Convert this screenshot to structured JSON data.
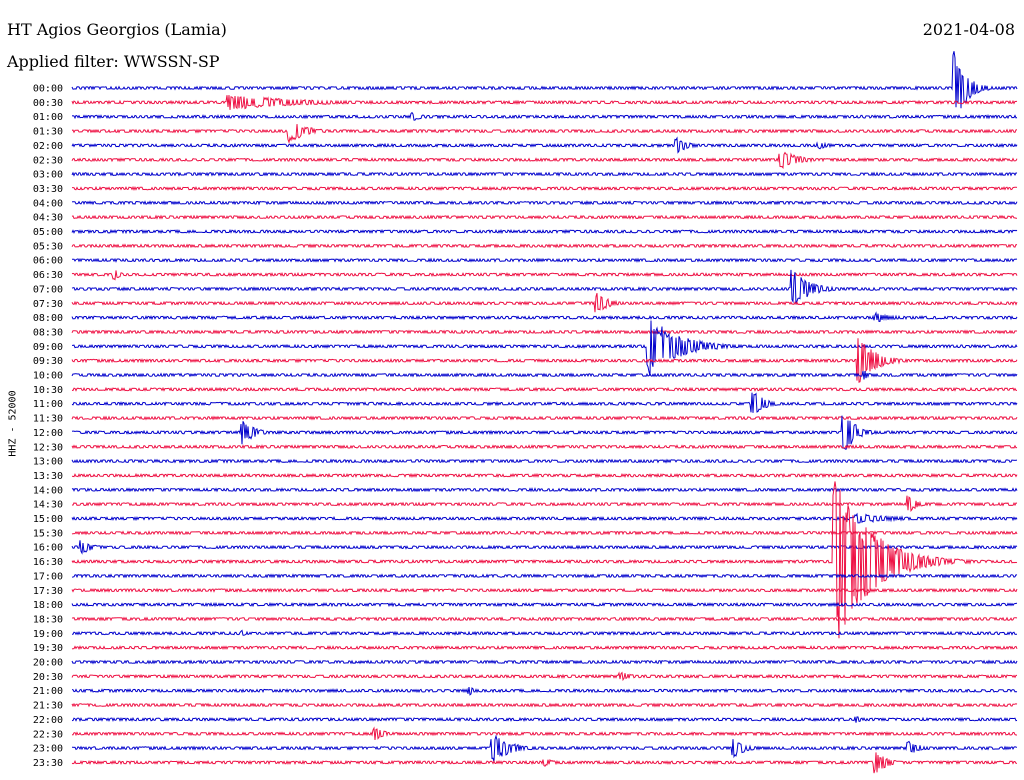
{
  "header": {
    "station": "HT Agios Georgios (Lamia)",
    "date": "2021-04-08",
    "filter": "Applied filter: WWSSN-SP"
  },
  "chart_data": {
    "type": "line",
    "ylabel": "HHZ - 52000",
    "colors": {
      "even": "#0000cc",
      "odd": "#ee1144"
    },
    "tick_labels": [
      "00:00",
      "00:30",
      "01:00",
      "01:30",
      "02:00",
      "02:30",
      "03:00",
      "03:30",
      "04:00",
      "04:30",
      "05:00",
      "05:30",
      "06:00",
      "06:30",
      "07:00",
      "07:30",
      "08:00",
      "08:30",
      "09:00",
      "09:30",
      "10:00",
      "10:30",
      "11:00",
      "11:30",
      "12:00",
      "12:30",
      "13:00",
      "13:30",
      "14:00",
      "14:30",
      "15:00",
      "15:30",
      "16:00",
      "16:30",
      "17:00",
      "17:30",
      "18:00",
      "18:30",
      "19:00",
      "19:30",
      "20:00",
      "20:30",
      "21:00",
      "21:30",
      "22:00",
      "22:30",
      "23:00",
      "23:30"
    ],
    "events": [
      {
        "row": 0,
        "at": 0.934,
        "amp": 40,
        "len": 0.02
      },
      {
        "row": 1,
        "at": 0.165,
        "amp": 8,
        "len": 0.12
      },
      {
        "row": 2,
        "at": 0.36,
        "amp": 5,
        "len": 0.02
      },
      {
        "row": 3,
        "at": 0.23,
        "amp": 12,
        "len": 0.03
      },
      {
        "row": 4,
        "at": 0.64,
        "amp": 8,
        "len": 0.02
      },
      {
        "row": 4,
        "at": 0.79,
        "amp": 4,
        "len": 0.02
      },
      {
        "row": 5,
        "at": 0.75,
        "amp": 10,
        "len": 0.03
      },
      {
        "row": 13,
        "at": 0.045,
        "amp": 6,
        "len": 0.01
      },
      {
        "row": 14,
        "at": 0.762,
        "amp": 20,
        "len": 0.03
      },
      {
        "row": 15,
        "at": 0.555,
        "amp": 12,
        "len": 0.02
      },
      {
        "row": 16,
        "at": 0.85,
        "amp": 5,
        "len": 0.03
      },
      {
        "row": 18,
        "at": 0.61,
        "amp": 32,
        "len": 0.05
      },
      {
        "row": 19,
        "at": 0.832,
        "amp": 24,
        "len": 0.03
      },
      {
        "row": 20,
        "at": 0.838,
        "amp": 5,
        "len": 0.01
      },
      {
        "row": 22,
        "at": 0.72,
        "amp": 14,
        "len": 0.02
      },
      {
        "row": 24,
        "at": 0.18,
        "amp": 14,
        "len": 0.02
      },
      {
        "row": 24,
        "at": 0.816,
        "amp": 24,
        "len": 0.02
      },
      {
        "row": 29,
        "at": 0.885,
        "amp": 9,
        "len": 0.015
      },
      {
        "row": 30,
        "at": 0.83,
        "amp": 5,
        "len": 0.07
      },
      {
        "row": 32,
        "at": 0.01,
        "amp": 7,
        "len": 0.02
      },
      {
        "row": 33,
        "at": 0.807,
        "amp": 90,
        "len": 0.06
      },
      {
        "row": 38,
        "at": 0.18,
        "amp": 3,
        "len": 0.01
      },
      {
        "row": 41,
        "at": 0.58,
        "amp": 5,
        "len": 0.02
      },
      {
        "row": 42,
        "at": 0.42,
        "amp": 5,
        "len": 0.01
      },
      {
        "row": 44,
        "at": 0.83,
        "amp": 4,
        "len": 0.01
      },
      {
        "row": 45,
        "at": 0.32,
        "amp": 7,
        "len": 0.02
      },
      {
        "row": 46,
        "at": 0.445,
        "amp": 16,
        "len": 0.03
      },
      {
        "row": 46,
        "at": 0.7,
        "amp": 10,
        "len": 0.02
      },
      {
        "row": 46,
        "at": 0.885,
        "amp": 8,
        "len": 0.02
      },
      {
        "row": 47,
        "at": 0.85,
        "amp": 12,
        "len": 0.02
      },
      {
        "row": 47,
        "at": 0.5,
        "amp": 4,
        "len": 0.02
      }
    ]
  }
}
